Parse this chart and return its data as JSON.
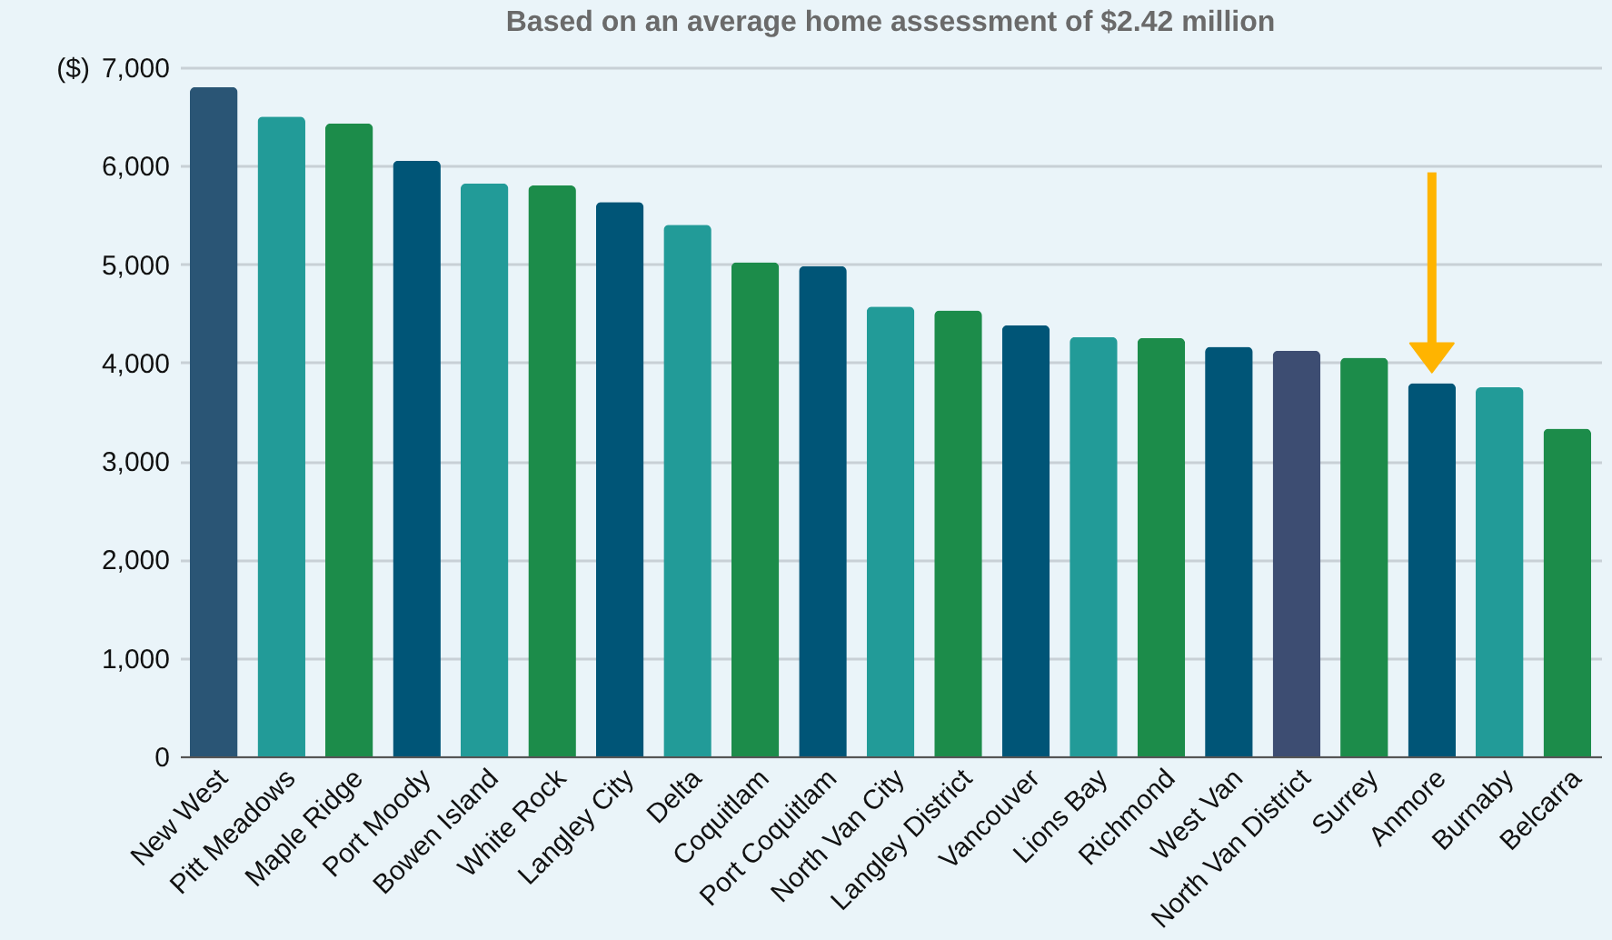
{
  "chart_data": {
    "type": "bar",
    "subtitle": "Based on an average home assessment of $2.42 million",
    "ylabel": "($)",
    "categories": [
      "New West",
      "Pitt Meadows",
      "Maple Ridge",
      "Port Moody",
      "Bowen Island",
      "White Rock",
      "Langley City",
      "Delta",
      "Coquitlam",
      "Port Coquitlam",
      "North Van City",
      "Langley District",
      "Vancouver",
      "Lions Bay",
      "Richmond",
      "West Van",
      "North Van District",
      "Surrey",
      "Anmore",
      "Burnaby",
      "Belcarra"
    ],
    "values": [
      6800,
      6500,
      6430,
      6050,
      5820,
      5800,
      5630,
      5400,
      5020,
      4980,
      4570,
      4530,
      4380,
      4260,
      4250,
      4160,
      4120,
      4050,
      3790,
      3750,
      3330
    ],
    "colors": [
      "#2a5575",
      "#229b98",
      "#1c8c4a",
      "#005577",
      "#229b98",
      "#1c8c4a",
      "#005577",
      "#229b98",
      "#1c8c4a",
      "#005577",
      "#229b98",
      "#1c8c4a",
      "#005577",
      "#229b98",
      "#1c8c4a",
      "#005577",
      "#3d4d72",
      "#1c8c4a",
      "#005577",
      "#229b98",
      "#1c8c4a"
    ],
    "ylim": [
      0,
      7000
    ],
    "yticks": [
      0,
      {
        "value": 1000,
        "label": "1,000"
      },
      {
        "value": 2000,
        "label": "2,000"
      },
      {
        "value": 3000,
        "label": "3,000"
      },
      {
        "value": 4000,
        "label": "4,000"
      },
      {
        "value": 5000,
        "label": "5,000"
      },
      {
        "value": 6000,
        "label": "6,000"
      },
      {
        "value": 7000,
        "label": "7,000"
      }
    ],
    "grid": "y"
  }
}
